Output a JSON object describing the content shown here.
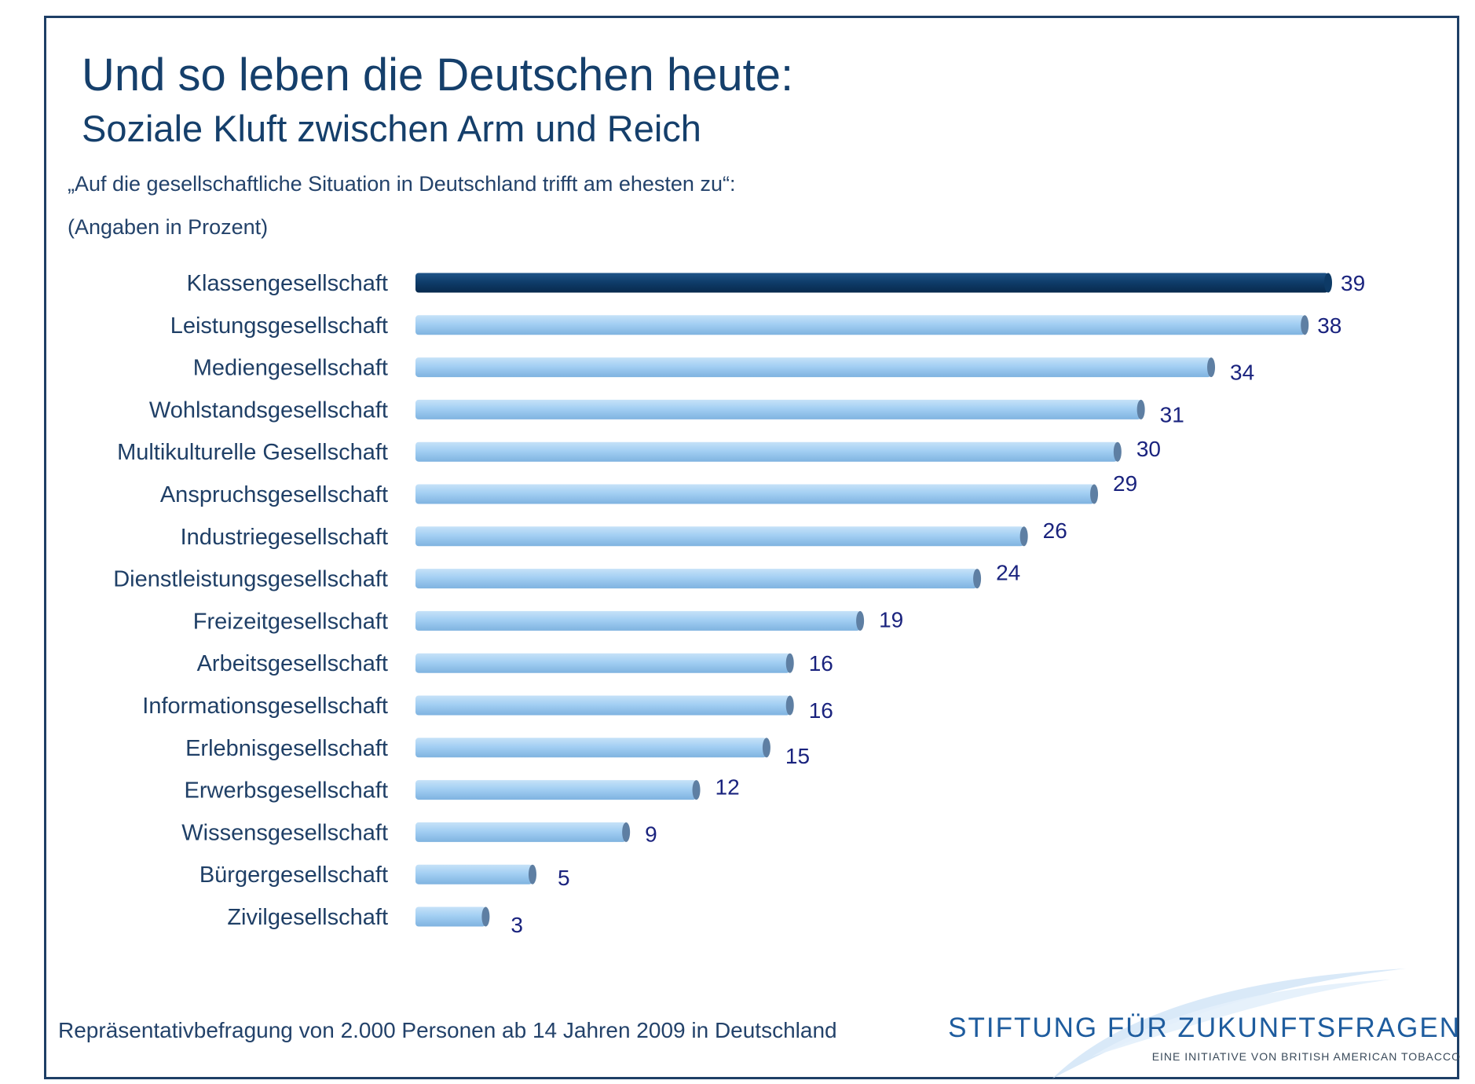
{
  "header": {
    "title": "Und so leben die Deutschen heute:",
    "subtitle": "Soziale Kluft zwischen Arm und Reich",
    "question": "„Auf die gesellschaftliche Situation in Deutschland trifft am ehesten zu“:",
    "unit": "(Angaben in Prozent)"
  },
  "footer": {
    "note": "Repräsentativbefragung von 2.000 Personen ab 14 Jahren 2009 in Deutschland",
    "logo_name": "STIFTUNG FÜR ZUKUNFTSFRAGEN",
    "logo_tagline": "EINE INITIATIVE VON BRITISH AMERICAN TOBACCO"
  },
  "colors": {
    "highlight_bar": "#0d3a66",
    "bar": "#9ecbf0",
    "bar_cap": "#5e7fa3",
    "title": "#153f6b",
    "value_text": "#1a237e"
  },
  "chart_data": {
    "type": "bar",
    "orientation": "horizontal",
    "categories": [
      "Klassengesellschaft",
      "Leistungsgesellschaft",
      "Mediengesellschaft",
      "Wohlstandsgesellschaft",
      "Multikulturelle Gesellschaft",
      "Anspruchsgesellschaft",
      "Industriegesellschaft",
      "Dienstleistungsgesellschaft",
      "Freizeitgesellschaft",
      "Arbeitsgesellschaft",
      "Informationsgesellschaft",
      "Erlebnisgesellschaft",
      "Erwerbsgesellschaft",
      "Wissensgesellschaft",
      "Bürgergesellschaft",
      "Zivilgesellschaft"
    ],
    "values": [
      39,
      38,
      34,
      31,
      30,
      29,
      26,
      24,
      19,
      16,
      16,
      15,
      12,
      9,
      5,
      3
    ],
    "highlighted_category": "Klassengesellschaft",
    "xlim": [
      0,
      39
    ],
    "grid": false,
    "legend": "none"
  }
}
